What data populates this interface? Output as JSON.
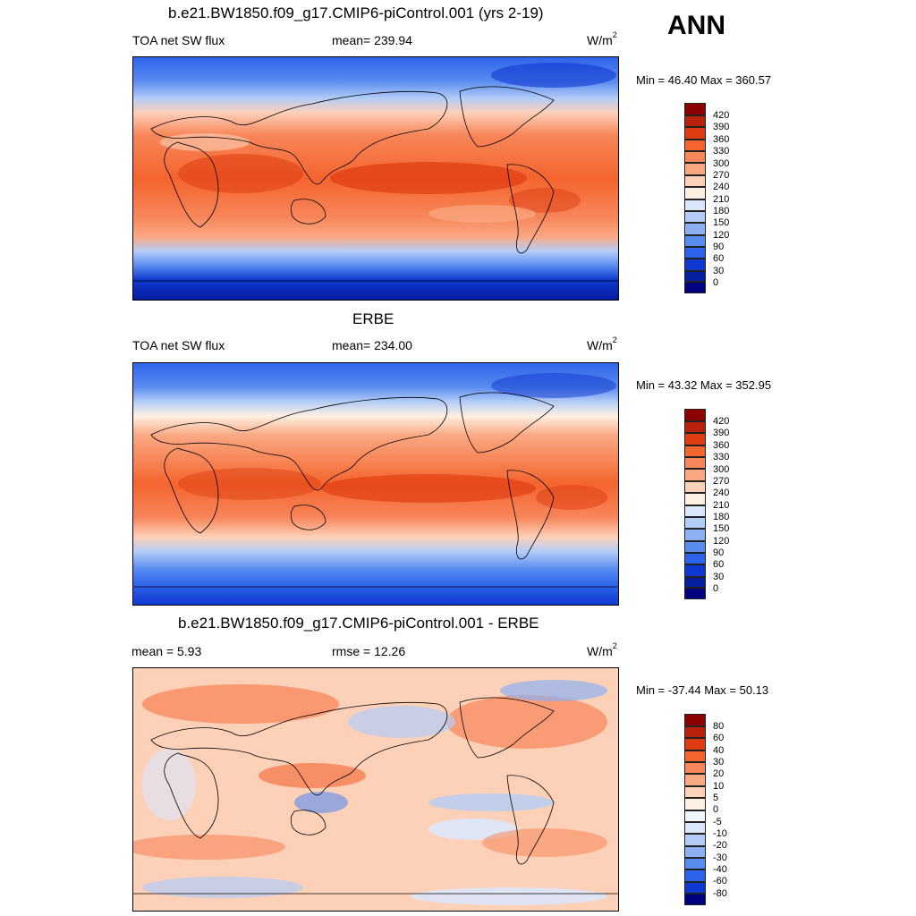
{
  "season": "ANN",
  "panels": [
    {
      "title": "b.e21.BW1850.f09_g17.CMIP6-piControl.001 (yrs 2-19)",
      "left": "TOA net SW flux",
      "center": "mean= 239.94",
      "units": "W/m",
      "units_sup": "2",
      "minmax": "Min =  46.40 Max = 360.57",
      "colorbar": [
        "420",
        "390",
        "360",
        "330",
        "300",
        "270",
        "240",
        "210",
        "180",
        "150",
        "120",
        "90",
        "60",
        "30",
        "0"
      ]
    },
    {
      "title": "ERBE",
      "left": "TOA net SW flux",
      "center": "mean= 234.00",
      "units": "W/m",
      "units_sup": "2",
      "minmax": "Min =  43.32 Max = 352.95",
      "colorbar": [
        "420",
        "390",
        "360",
        "330",
        "300",
        "270",
        "240",
        "210",
        "180",
        "150",
        "120",
        "90",
        "60",
        "30",
        "0"
      ]
    },
    {
      "title": "b.e21.BW1850.f09_g17.CMIP6-piControl.001 - ERBE",
      "left": "mean =   5.93",
      "center": "rmse =  12.26",
      "units": "W/m",
      "units_sup": "2",
      "minmax": "Min = -37.44 Max =  50.13",
      "colorbar": [
        "80",
        "60",
        "40",
        "30",
        "20",
        "10",
        "5",
        "0",
        "-5",
        "-10",
        "-20",
        "-30",
        "-40",
        "-60",
        "-80"
      ]
    }
  ],
  "colors": {
    "abs_scale": [
      "#8b0000",
      "#b8220a",
      "#de3c12",
      "#f4642e",
      "#f7865a",
      "#faa882",
      "#fdd0b8",
      "#fef0e2",
      "#dbe7fb",
      "#b4cdf7",
      "#8db0f2",
      "#5a8cf0",
      "#2e64ec",
      "#0f38d0",
      "#061ea0",
      "#000080"
    ],
    "diff_scale": [
      "#8b0000",
      "#b8220a",
      "#de3c12",
      "#f4642e",
      "#f7865a",
      "#faa882",
      "#fdd0b8",
      "#fef0e2",
      "#f0f5fe",
      "#dbe7fb",
      "#b4cdf7",
      "#8db0f2",
      "#5a8cf0",
      "#2e64ec",
      "#0f38d0",
      "#000080"
    ]
  }
}
